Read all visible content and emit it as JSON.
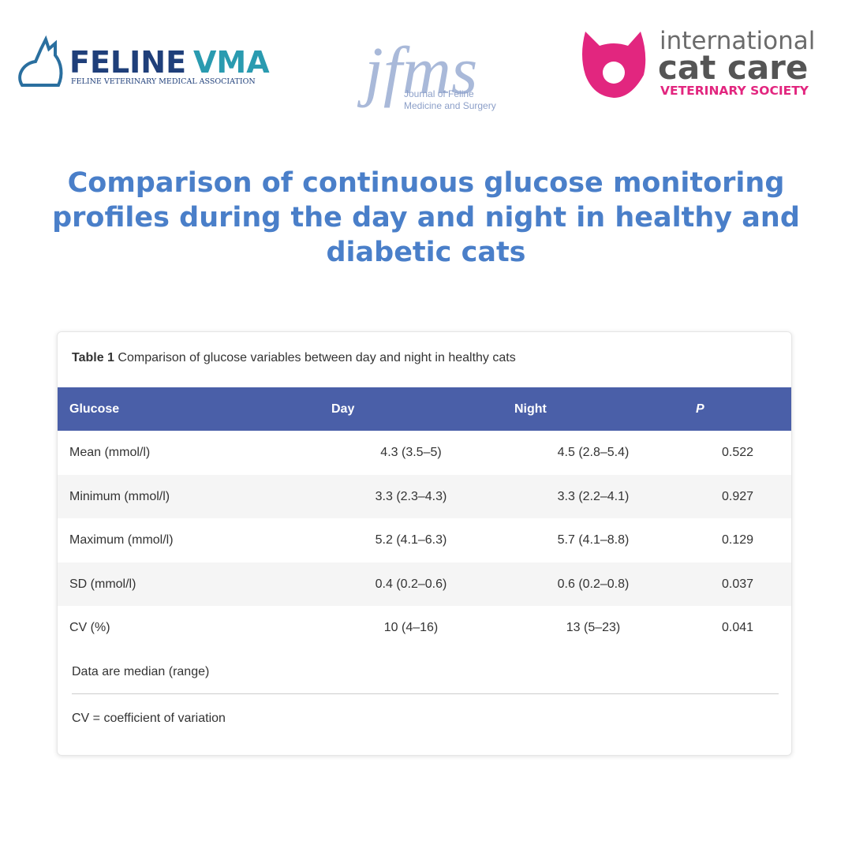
{
  "header": {
    "felinevma": {
      "name_left": "FELINE",
      "name_right": "VMA",
      "subtitle": "FELINE VETERINARY MEDICAL ASSOCIATION"
    },
    "jfms": {
      "name": "jfms",
      "subtitle_1": "Journal of Feline",
      "subtitle_2": "Medicine and Surgery"
    },
    "icc": {
      "line_1": "international",
      "line_2": "cat care",
      "line_3": "VETERINARY SOCIETY"
    }
  },
  "title": "Comparison of continuous glucose monitoring profiles during the day and night in healthy and diabetic cats",
  "table": {
    "caption_label": "Table 1",
    "caption": "Comparison of glucose variables between day and night in healthy cats",
    "columns": [
      "Glucose",
      "Day",
      "Night",
      "P"
    ],
    "rows": [
      [
        "Mean (mmol/l)",
        "4.3 (3.5–5)",
        "4.5 (2.8–5.4)",
        "0.522"
      ],
      [
        "Minimum (mmol/l)",
        "3.3 (2.3–4.3)",
        "3.3 (2.2–4.1)",
        "0.927"
      ],
      [
        "Maximum (mmol/l)",
        "5.2 (4.1–6.3)",
        "5.7 (4.1–8.8)",
        "0.129"
      ],
      [
        "SD (mmol/l)",
        "0.4 (0.2–0.6)",
        "0.6 (0.2–0.8)",
        "0.037"
      ],
      [
        "CV (%)",
        "10 (4–16)",
        "13 (5–23)",
        "0.041"
      ]
    ],
    "notes": [
      "Data are median (range)",
      "CV = coefficient of variation"
    ]
  }
}
